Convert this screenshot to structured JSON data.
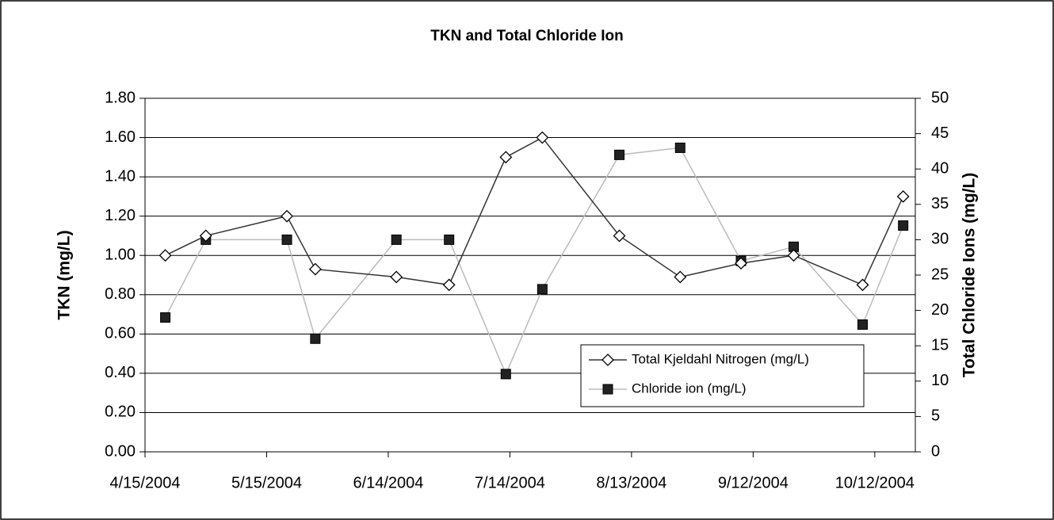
{
  "chart_data": {
    "type": "line",
    "title": "TKN and Total Chloride Ion",
    "y_label": "TKN (mg/L)",
    "y2_label": "Total Chloride Ions (mg/L)",
    "x": [
      "4/20/2004",
      "4/30/2004",
      "5/20/2004",
      "5/27/2004",
      "6/16/2004",
      "6/29/2004",
      "7/13/2004",
      "7/22/2004",
      "8/10/2004",
      "8/25/2004",
      "9/9/2004",
      "9/22/2004",
      "10/9/2004",
      "10/19/2004"
    ],
    "xlim": [
      "4/15/2004",
      "10/22/2004"
    ],
    "xticks": [
      "4/15/2004",
      "5/15/2004",
      "6/14/2004",
      "7/14/2004",
      "8/13/2004",
      "9/12/2004",
      "10/12/2004"
    ],
    "ylim": [
      0,
      1.8
    ],
    "yticks": [
      {
        "value": 0,
        "label": "0.00"
      },
      {
        "value": 0.2,
        "label": "0.20"
      },
      {
        "value": 0.4,
        "label": "0.40"
      },
      {
        "value": 0.6,
        "label": "0.60"
      },
      {
        "value": 0.8,
        "label": "0.80"
      },
      {
        "value": 1,
        "label": "1.00"
      },
      {
        "value": 1.2,
        "label": "1.20"
      },
      {
        "value": 1.4,
        "label": "1.40"
      },
      {
        "value": 1.6,
        "label": "1.60"
      },
      {
        "value": 1.8,
        "label": "1.80"
      }
    ],
    "y2lim": [
      0,
      50
    ],
    "y2ticks": [
      0,
      5,
      10,
      15,
      20,
      25,
      30,
      35,
      40,
      45,
      50
    ],
    "grid": true,
    "legend": "lower-right",
    "series": [
      {
        "name": "Total Kjeldahl Nitrogen (mg/L)",
        "color": "#333333",
        "marker": "diamond",
        "values": [
          1.0,
          1.1,
          1.2,
          0.93,
          0.89,
          0.85,
          1.5,
          1.6,
          1.1,
          0.89,
          0.96,
          1.0,
          0.85,
          1.3
        ]
      },
      {
        "name": "Chloride ion (mg/L)",
        "color": "#bbbbbb",
        "marker": "square",
        "axis": "y2",
        "values": [
          19,
          30,
          30,
          16,
          30,
          30,
          11,
          23,
          42,
          43,
          27,
          29,
          18,
          32
        ]
      }
    ]
  }
}
